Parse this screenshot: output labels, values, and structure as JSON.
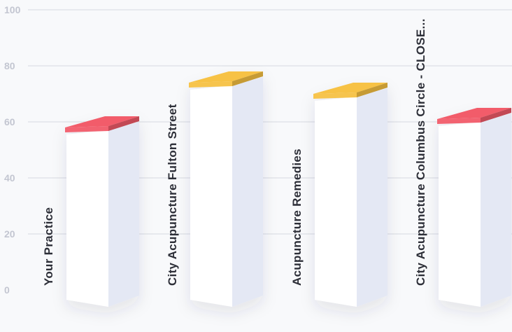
{
  "chart_data": {
    "type": "bar",
    "style": "3d-isometric",
    "categories": [
      "Your Practice",
      "City Acupuncture Fulton Street",
      "Acupuncture Remedies",
      "City Acupuncture Columbus Circle - CLOSE..."
    ],
    "values": [
      60,
      76,
      72,
      63
    ],
    "top_colors": [
      "#f25c6a",
      "#f7c244",
      "#f7c244",
      "#f25c6a"
    ],
    "ylim": [
      0,
      100
    ],
    "yticks": [
      "0",
      "20",
      "40",
      "60",
      "80",
      "100"
    ],
    "grid": true,
    "legend": "none"
  }
}
